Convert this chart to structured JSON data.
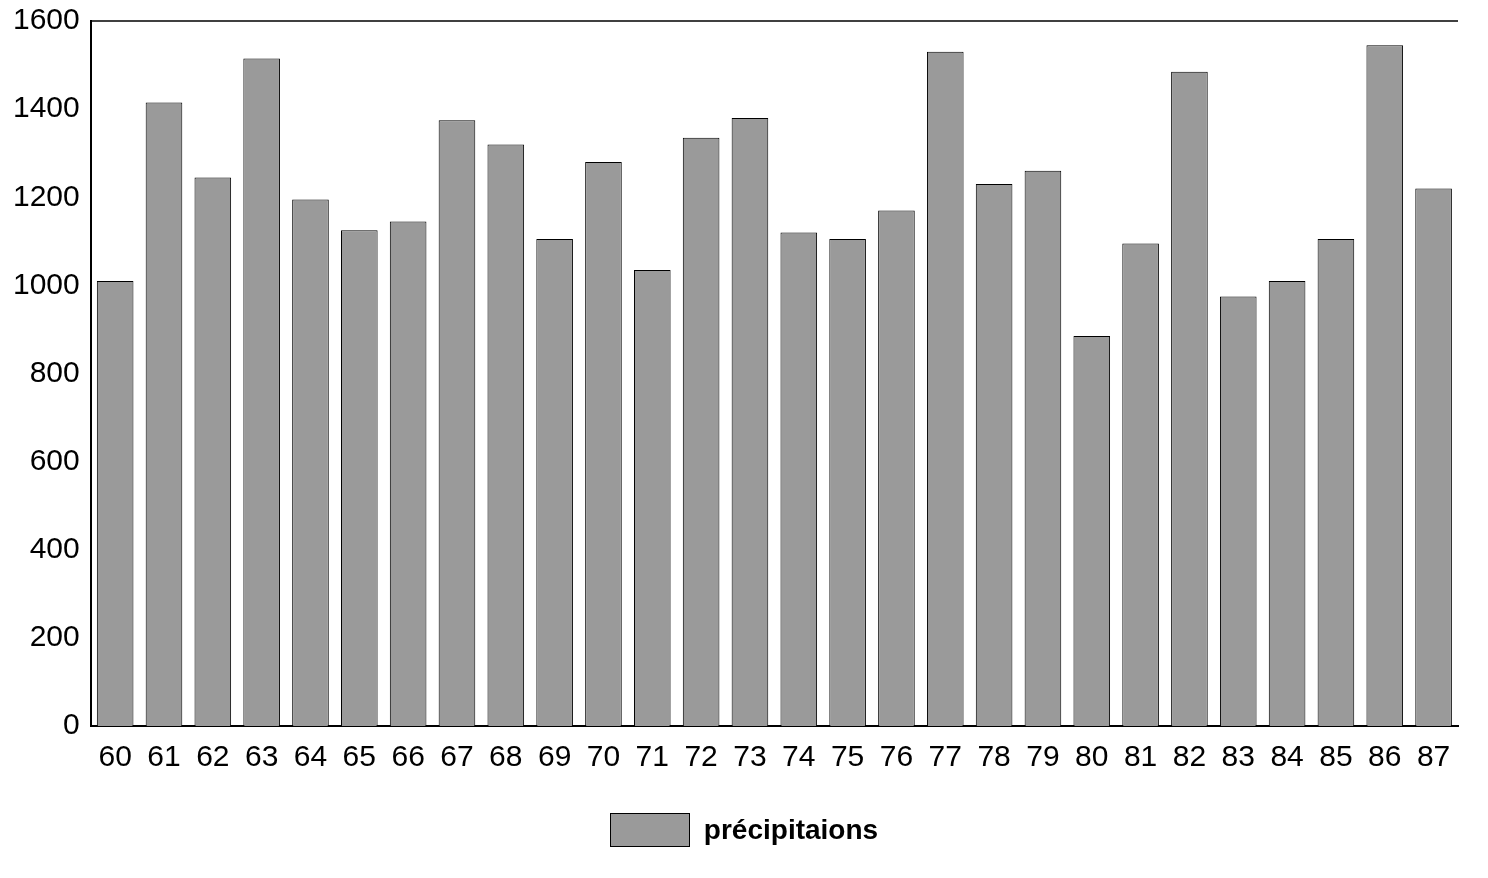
{
  "chart_data": {
    "type": "bar",
    "categories": [
      "60",
      "61",
      "62",
      "63",
      "64",
      "65",
      "66",
      "67",
      "68",
      "69",
      "70",
      "71",
      "72",
      "73",
      "74",
      "75",
      "76",
      "77",
      "78",
      "79",
      "80",
      "81",
      "82",
      "83",
      "84",
      "85",
      "86",
      "87"
    ],
    "series": [
      {
        "name": "précipitaions",
        "color": "#9a9a9a",
        "values": [
          1010,
          1415,
          1245,
          1515,
          1195,
          1125,
          1145,
          1375,
          1320,
          1105,
          1280,
          1035,
          1335,
          1380,
          1120,
          1105,
          1170,
          1530,
          1230,
          1260,
          885,
          1095,
          1485,
          975,
          1010,
          1105,
          1545,
          1220
        ]
      }
    ],
    "ylim": [
      0,
      1600
    ],
    "yticks": [
      0,
      200,
      400,
      600,
      800,
      1000,
      1200,
      1400,
      1600
    ],
    "grid": false,
    "legend": "bottom"
  }
}
